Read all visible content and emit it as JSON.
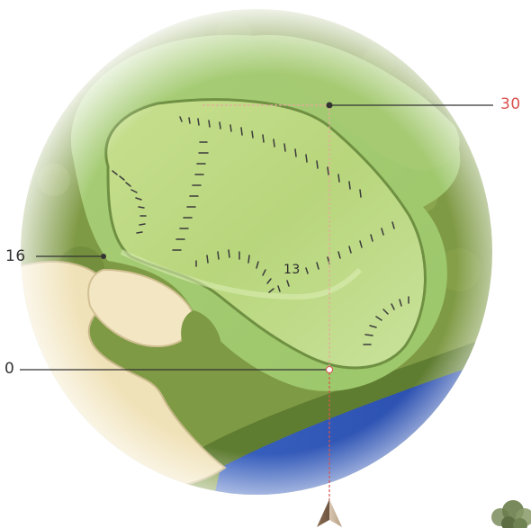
{
  "measurements": {
    "back_yards": "30",
    "left_yards": "16",
    "front_yards": "0",
    "slope_marker": "13"
  },
  "colors": {
    "back_label": "#d9534f",
    "other_labels": "#333333",
    "guide_line": "#d9534f",
    "green": "#b9d77a",
    "fringe": "#9cc766",
    "rough": "#6f8a3a",
    "sand": "#f1e4bd",
    "water": "#2f58b8"
  },
  "icons": {
    "direction": "arrow-up-icon",
    "tree": "tree-icon"
  }
}
